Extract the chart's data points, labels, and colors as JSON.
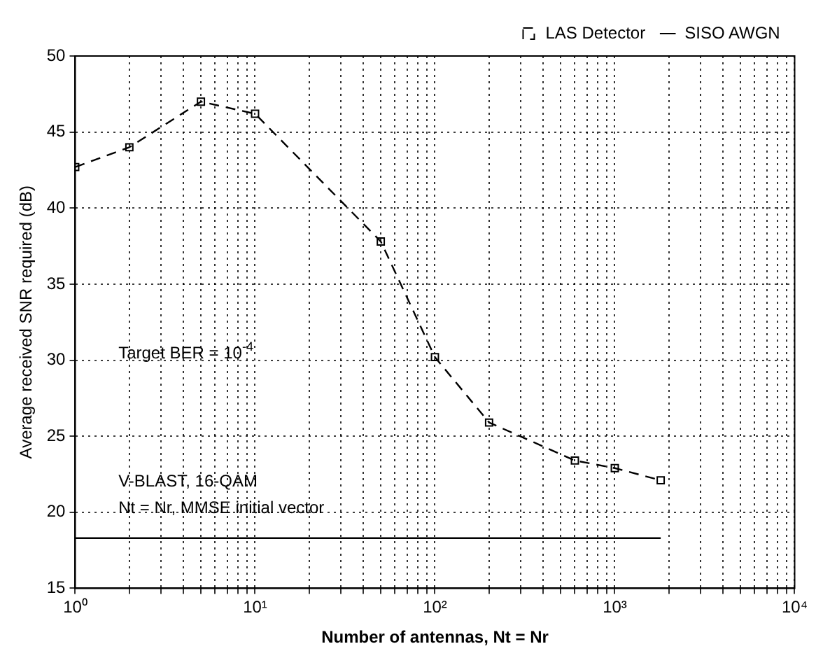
{
  "chart_data": {
    "type": "line",
    "xlabel": "Number of antennas, Nt = Nr",
    "ylabel": "Average received SNR required (dB)",
    "annotations": [
      "Target BER = 10$^{-4}$",
      "V-BLAST, 16-QAM",
      "Nt = Nr, MMSE initial vector"
    ],
    "series": [
      {
        "name": "LAS Detector",
        "color": "#000000",
        "x": [
          1,
          2,
          5,
          10,
          50,
          100,
          200,
          600,
          1000,
          1800
        ],
        "values": [
          42.7,
          44.0,
          47.0,
          46.2,
          37.8,
          30.2,
          25.9,
          23.4,
          22.9,
          22.1
        ],
        "marker": "square",
        "line_style": "dashed"
      },
      {
        "name": "SISO AWGN",
        "color": "#000000",
        "x": [
          1,
          1800
        ],
        "values": [
          18.3,
          18.3
        ],
        "marker": "none",
        "line_style": "solid"
      }
    ],
    "log": "x",
    "xlim": [
      1,
      10000
    ],
    "ylim": [
      15,
      50
    ],
    "xticks": [
      {
        "value": 1,
        "label": "10⁰"
      },
      {
        "value": 2,
        "label": null
      },
      {
        "value": 3,
        "label": null
      },
      {
        "value": 4,
        "label": null
      },
      {
        "value": 5,
        "label": null
      },
      {
        "value": 6,
        "label": null
      },
      {
        "value": 7,
        "label": null
      },
      {
        "value": 8,
        "label": null
      },
      {
        "value": 9,
        "label": null
      },
      {
        "value": 10,
        "label": "10¹"
      },
      {
        "value": 20,
        "label": null
      },
      {
        "value": 30,
        "label": null
      },
      {
        "value": 40,
        "label": null
      },
      {
        "value": 50,
        "label": null
      },
      {
        "value": 60,
        "label": null
      },
      {
        "value": 70,
        "label": null
      },
      {
        "value": 80,
        "label": null
      },
      {
        "value": 90,
        "label": null
      },
      {
        "value": 100,
        "label": "10²"
      },
      {
        "value": 200,
        "label": null
      },
      {
        "value": 300,
        "label": null
      },
      {
        "value": 400,
        "label": null
      },
      {
        "value": 500,
        "label": null
      },
      {
        "value": 600,
        "label": null
      },
      {
        "value": 700,
        "label": null
      },
      {
        "value": 800,
        "label": null
      },
      {
        "value": 900,
        "label": null
      },
      {
        "value": 1000,
        "label": "10³"
      },
      {
        "value": 2000,
        "label": null
      },
      {
        "value": 3000,
        "label": null
      },
      {
        "value": 4000,
        "label": null
      },
      {
        "value": 5000,
        "label": null
      },
      {
        "value": 6000,
        "label": null
      },
      {
        "value": 7000,
        "label": null
      },
      {
        "value": 8000,
        "label": null
      },
      {
        "value": 9000,
        "label": null
      },
      {
        "value": 10000,
        "label": "10⁴"
      }
    ],
    "yticks": [
      15,
      20,
      25,
      30,
      35,
      40,
      45,
      50
    ],
    "grid": true,
    "legend": "top right"
  }
}
